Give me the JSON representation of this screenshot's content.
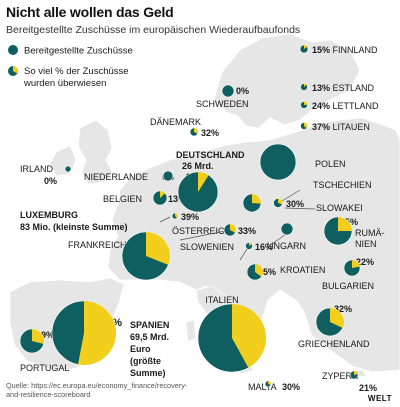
{
  "title": "Nicht alle wollen das Geld",
  "subtitle": "Bereitgestellte Zuschüsse im europäischen Wiederaufbaufonds",
  "legend": {
    "granted": "Bereitgestellte Zuschüsse",
    "paid_line1": "So viel % der Zuschüsse",
    "paid_line2": "wurden überwiesen"
  },
  "source": {
    "line1": "Quelle: https://ec.europa.eu/economy_finance/recovery-",
    "line2": "and-resilience-scoreboard"
  },
  "logo": "WELT",
  "colors": {
    "granted": "#0f5f60",
    "paid": "#f2cf1c"
  },
  "chart_data": {
    "type": "pie",
    "title": "Nicht alle wollen das Geld",
    "subtitle": "Bereitgestellte Zuschüsse im europäischen Wiederaufbaufonds",
    "series": [
      {
        "name": "Bereitgestellte Zuschüsse"
      },
      {
        "name": "So viel % der Zuschüsse wurden überwiesen"
      }
    ],
    "countries": [
      {
        "id": "finnland",
        "name": "FINNLAND",
        "pct": 15,
        "pct_label": "15%"
      },
      {
        "id": "schweden",
        "name": "SCHWEDEN",
        "pct": 0,
        "pct_label": "0%"
      },
      {
        "id": "estland",
        "name": "ESTLAND",
        "pct": 13,
        "pct_label": "13%"
      },
      {
        "id": "lettland",
        "name": "LETTLAND",
        "pct": 24,
        "pct_label": "24%"
      },
      {
        "id": "litauen",
        "name": "LITAUEN",
        "pct": 37,
        "pct_label": "37%"
      },
      {
        "id": "daenemark",
        "name": "DÄNEMARK",
        "pct": 32,
        "pct_label": "32%"
      },
      {
        "id": "irland",
        "name": "IRLAND",
        "pct": 0,
        "pct_label": "0%"
      },
      {
        "id": "deutschland",
        "name": "DEUTSCHLAND",
        "amount": "26 Mrd.",
        "pct": 9,
        "pct_label": "9%"
      },
      {
        "id": "polen",
        "name": "POLEN",
        "pct": 0,
        "pct_label": "0%"
      },
      {
        "id": "niederlande",
        "name": "NIEDERLANDE",
        "pct": 0,
        "pct_label": "0%"
      },
      {
        "id": "belgien",
        "name": "BELGIEN",
        "pct": 13,
        "pct_label": "13%"
      },
      {
        "id": "tschechien",
        "name": "TSCHECHIEN",
        "pct": 26,
        "pct_label": "26%"
      },
      {
        "id": "slowakei",
        "name": "SLOWAKEI",
        "pct": 30,
        "pct_label": "30%"
      },
      {
        "id": "luxemburg",
        "name": "LUXEMBURG",
        "amount": "83 Mio. (kleinste Summe)",
        "pct": 39,
        "pct_label": "39%"
      },
      {
        "id": "oesterreich",
        "name": "ÖSTERREICH",
        "pct": 33,
        "pct_label": "33%"
      },
      {
        "id": "ungarn",
        "name": "UNGARN",
        "pct": 0,
        "pct_label": "0%"
      },
      {
        "id": "rumaenien",
        "name": "RUMÄNIEN",
        "pct": 25,
        "pct_label": "25%"
      },
      {
        "id": "frankreich",
        "name": "FRANKREICH",
        "pct": 31,
        "pct_label": "31%"
      },
      {
        "id": "slowenien",
        "name": "SLOWENIEN",
        "pct": 16,
        "pct_label": "16%"
      },
      {
        "id": "kroatien",
        "name": "KROATIEN",
        "pct": 35,
        "pct_label": "35%"
      },
      {
        "id": "bulgarien",
        "name": "BULGARIEN",
        "pct": 22,
        "pct_label": "22%"
      },
      {
        "id": "portugal",
        "name": "PORTUGAL",
        "pct": 29,
        "pct_label": "29%"
      },
      {
        "id": "spanien",
        "name": "SPANIEN",
        "amount": "69,5 Mrd. Euro (größte Summe)",
        "pct": 53,
        "pct_label": "53%"
      },
      {
        "id": "italien",
        "name": "ITALIEN",
        "pct": 42,
        "pct_label": "42%"
      },
      {
        "id": "griechenland",
        "name": "GRIECHENLAND",
        "pct": 32,
        "pct_label": "32%"
      },
      {
        "id": "malta",
        "name": "MALTA",
        "pct": 30,
        "pct_label": "30%"
      },
      {
        "id": "zypern",
        "name": "ZYPERN",
        "pct": 21,
        "pct_label": "21%"
      }
    ]
  }
}
